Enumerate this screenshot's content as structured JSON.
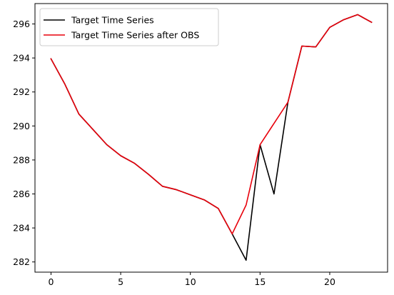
{
  "chart_data": {
    "type": "line",
    "title": "",
    "xlabel": "",
    "ylabel": "",
    "xlim": [
      -1.15,
      24.15
    ],
    "ylim": [
      281.4,
      297.2
    ],
    "xticks": [
      0,
      5,
      10,
      15,
      20
    ],
    "xtick_labels": [
      "0",
      "5",
      "10",
      "15",
      "20"
    ],
    "yticks": [
      282,
      284,
      286,
      288,
      290,
      292,
      294,
      296
    ],
    "ytick_labels": [
      "282",
      "284",
      "286",
      "288",
      "290",
      "292",
      "294",
      "296"
    ],
    "grid": false,
    "legend_position": "top-left",
    "x": [
      0,
      1,
      2,
      3,
      4,
      5,
      6,
      7,
      8,
      9,
      10,
      11,
      12,
      13,
      14,
      15,
      16,
      17,
      18,
      19,
      20,
      21,
      22,
      23
    ],
    "series": [
      {
        "name": "Target Time Series",
        "color": "#000000",
        "values": [
          293.95,
          292.45,
          290.7,
          289.8,
          288.9,
          288.25,
          287.8,
          287.15,
          286.45,
          286.25,
          285.95,
          285.65,
          285.15,
          283.65,
          282.1,
          288.9,
          286.0,
          291.4,
          294.7,
          294.65,
          295.8,
          296.25,
          296.55,
          296.1
        ]
      },
      {
        "name": "Target Time Series after OBS",
        "color": "#e8000b",
        "values": [
          293.95,
          292.45,
          290.7,
          289.8,
          288.9,
          288.25,
          287.8,
          287.15,
          286.45,
          286.25,
          285.95,
          285.65,
          285.15,
          283.65,
          285.35,
          288.9,
          290.15,
          291.4,
          294.7,
          294.65,
          295.8,
          296.25,
          296.55,
          296.1
        ]
      }
    ]
  }
}
